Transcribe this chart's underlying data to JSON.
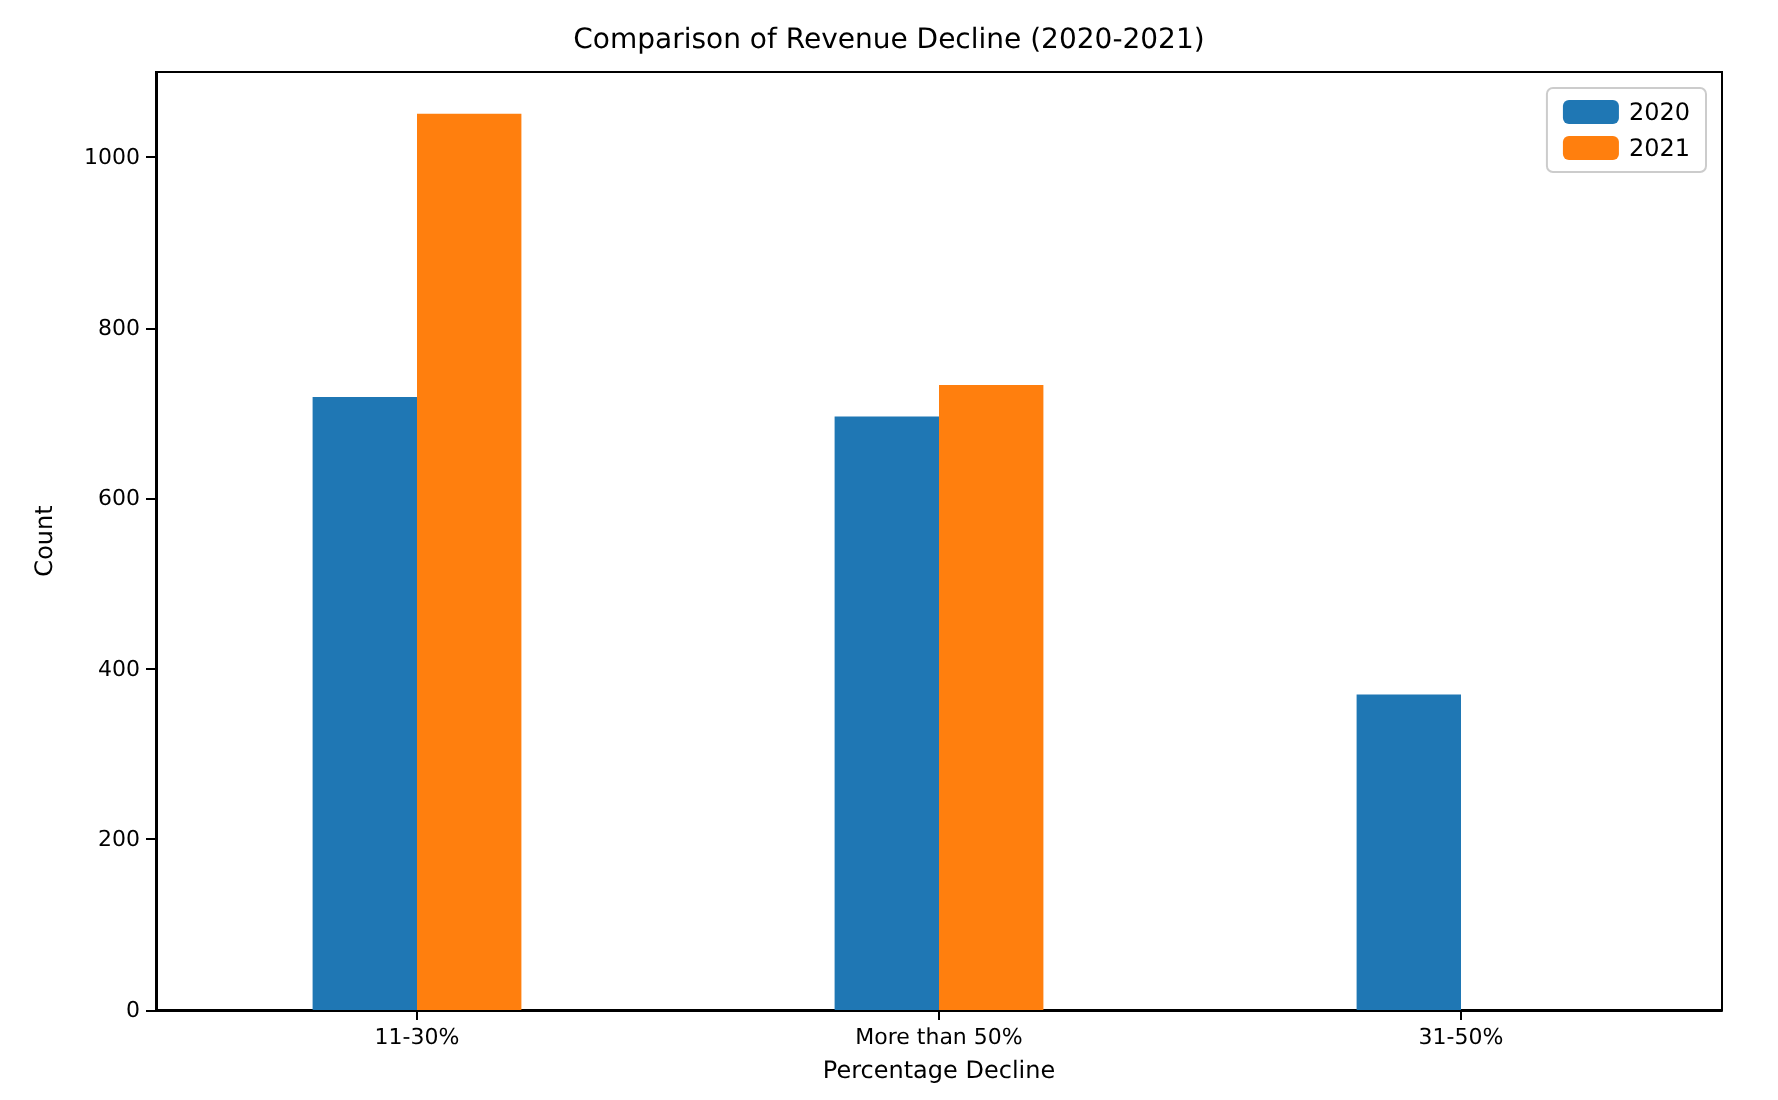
{
  "chart_data": {
    "type": "bar",
    "title": "Comparison of Revenue Decline (2020-2021)",
    "xlabel": "Percentage Decline",
    "ylabel": "Count",
    "categories": [
      "11-30%",
      "More than 50%",
      "31-50%"
    ],
    "series": [
      {
        "name": "2020",
        "color": "#1f77b4",
        "values": [
          719,
          696,
          370
        ]
      },
      {
        "name": "2021",
        "color": "#ff7f0e",
        "values": [
          1051,
          733,
          null
        ]
      }
    ],
    "ylim": [
      0,
      1100
    ],
    "yticks": [
      0,
      200,
      400,
      600,
      800,
      1000
    ],
    "grid": false,
    "legend": "top right"
  }
}
